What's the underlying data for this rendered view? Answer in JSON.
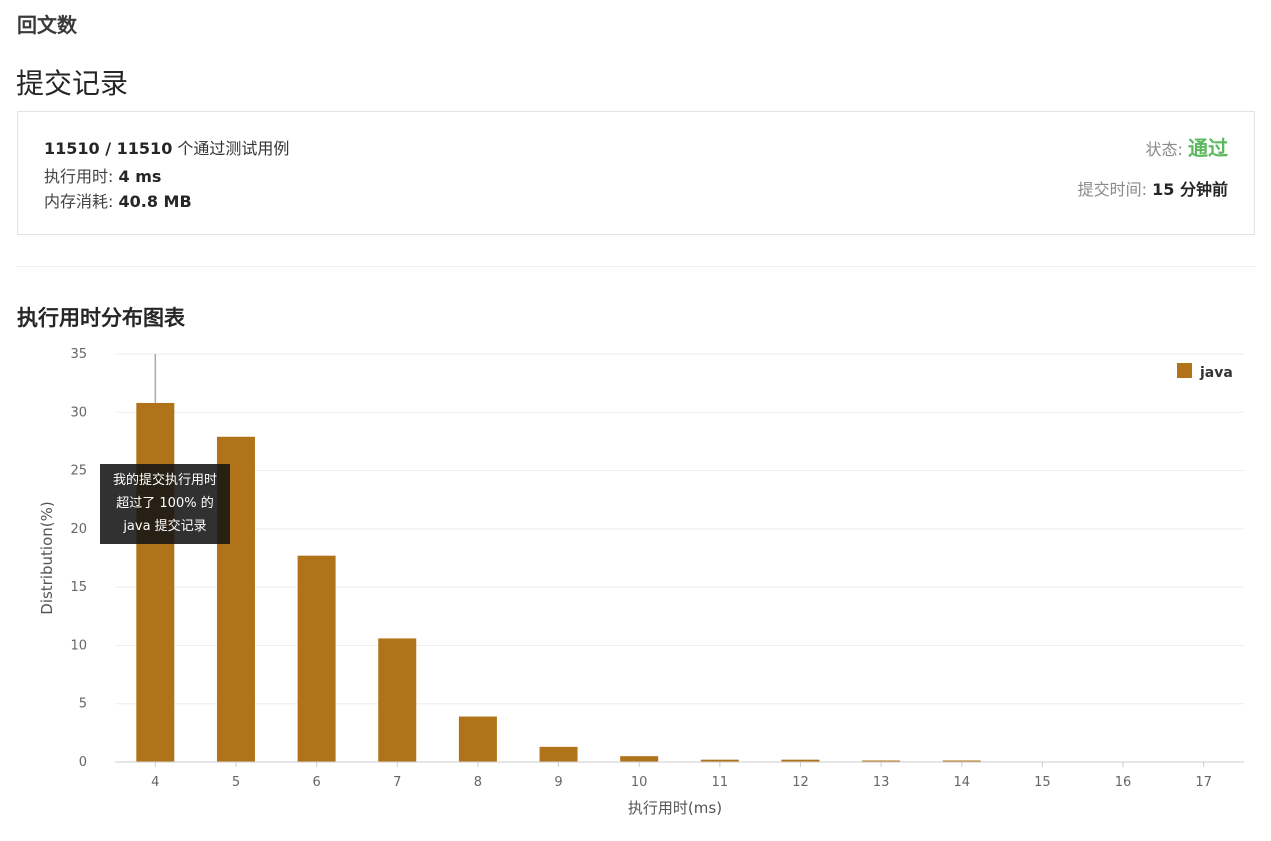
{
  "problem": {
    "title": "回文数"
  },
  "page": {
    "title": "提交记录"
  },
  "result": {
    "passed": "11510",
    "total": "11510",
    "cases_suffix": "个通过测试用例",
    "runtime_label": "执行用时:",
    "runtime_value": "4 ms",
    "memory_label": "内存消耗:",
    "memory_value": "40.8 MB",
    "status_label": "状态:",
    "status_value": "通过",
    "submit_time_label": "提交时间:",
    "submit_time_value": "15 分钟前"
  },
  "chart_heading": "执行用时分布图表",
  "chart_data": {
    "type": "bar",
    "categories": [
      "4",
      "5",
      "6",
      "7",
      "8",
      "9",
      "10",
      "11",
      "12",
      "13",
      "14",
      "15",
      "16",
      "17"
    ],
    "series": [
      {
        "name": "java",
        "values": [
          30.8,
          27.9,
          17.7,
          10.6,
          3.9,
          1.3,
          0.5,
          0.2,
          0.2,
          0.1,
          0.1,
          0,
          0,
          0
        ]
      }
    ],
    "xlabel": "执行用时(ms)",
    "ylabel": "Distribution(%)",
    "ylim": [
      0,
      35
    ],
    "yticks": [
      0,
      5,
      10,
      15,
      20,
      25,
      30,
      35
    ],
    "grid": true,
    "legend": "top-right",
    "bar_color": "#b0731a",
    "highlight_category": "4"
  },
  "tooltip": {
    "line1": "我的提交执行用时",
    "line2": "超过了 100% 的",
    "line3": "java 提交记录"
  }
}
